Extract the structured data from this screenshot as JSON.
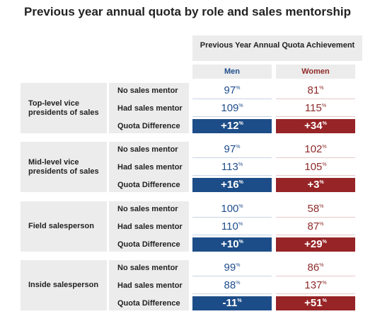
{
  "title": "Previous year annual quota by role and sales mentorship",
  "header": "Previous Year Annual Quota Achievement",
  "columns": {
    "men": "Men",
    "women": "Women"
  },
  "pct_symbol": "%",
  "groups": [
    {
      "label": "Top-level vice presidents of sales",
      "rows": [
        {
          "label": "No sales mentor",
          "men": "97",
          "women": "81"
        },
        {
          "label": "Had sales mentor",
          "men": "109",
          "women": "115"
        },
        {
          "label": "Quota Difference",
          "men": "+12",
          "women": "+34"
        }
      ]
    },
    {
      "label": "Mid-level vice presidents of sales",
      "rows": [
        {
          "label": "No sales mentor",
          "men": "97",
          "women": "102"
        },
        {
          "label": "Had sales mentor",
          "men": "113",
          "women": "105"
        },
        {
          "label": "Quota Difference",
          "men": "+16",
          "women": "+3"
        }
      ]
    },
    {
      "label": "Field salesperson",
      "rows": [
        {
          "label": "No sales mentor",
          "men": "100",
          "women": "58"
        },
        {
          "label": "Had sales mentor",
          "men": "110",
          "women": "87"
        },
        {
          "label": "Quota Difference",
          "men": "+10",
          "women": "+29"
        }
      ]
    },
    {
      "label": "Inside salesperson",
      "rows": [
        {
          "label": "No sales mentor",
          "men": "99",
          "women": "86"
        },
        {
          "label": "Had sales mentor",
          "men": "88",
          "women": "137"
        },
        {
          "label": "Quota Difference",
          "men": "-11",
          "women": "+51"
        }
      ]
    }
  ],
  "colors": {
    "men": "#1d4d88",
    "women": "#972426",
    "panel": "#ececec"
  },
  "chart_data": {
    "type": "table",
    "title": "Previous year annual quota by role and sales mentorship",
    "columns": [
      "Men",
      "Women"
    ],
    "rows": [
      {
        "role": "Top-level vice presidents of sales",
        "no_mentor": [
          97,
          81
        ],
        "had_mentor": [
          109,
          115
        ],
        "difference": [
          12,
          34
        ]
      },
      {
        "role": "Mid-level vice presidents of sales",
        "no_mentor": [
          97,
          102
        ],
        "had_mentor": [
          113,
          105
        ],
        "difference": [
          16,
          3
        ]
      },
      {
        "role": "Field salesperson",
        "no_mentor": [
          100,
          58
        ],
        "had_mentor": [
          110,
          87
        ],
        "difference": [
          10,
          29
        ]
      },
      {
        "role": "Inside salesperson",
        "no_mentor": [
          99,
          86
        ],
        "had_mentor": [
          88,
          137
        ],
        "difference": [
          -11,
          51
        ]
      }
    ]
  }
}
